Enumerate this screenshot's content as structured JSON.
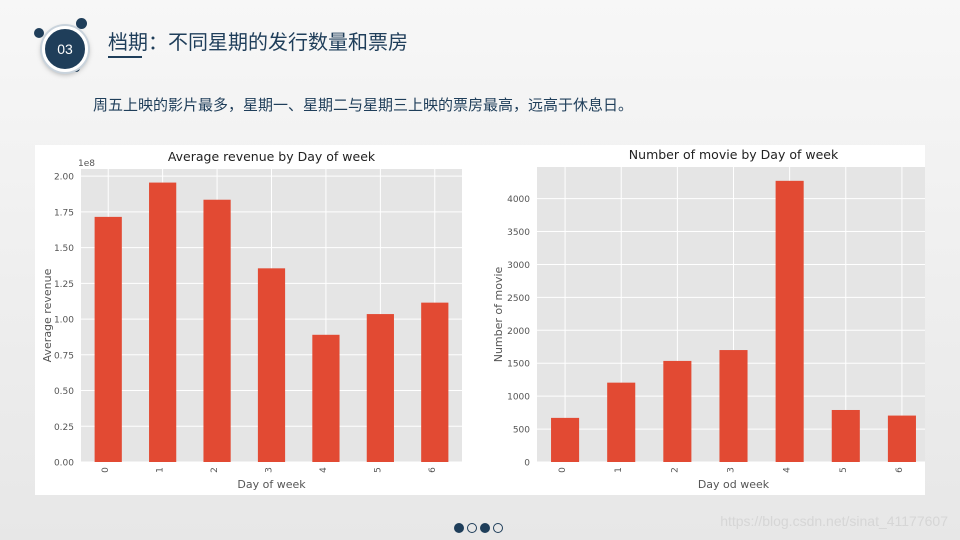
{
  "slide": {
    "badge_number": "03",
    "title": "档期：不同星期的发行数量和票房",
    "subtitle": "周五上映的影片最多，星期一、星期二与星期三上映的票房最高，远高于休息日。",
    "pager": [
      true,
      false,
      true,
      false
    ],
    "watermark": "https://blog.csdn.net/sinat_41177607"
  },
  "colors": {
    "bar": "#e24a33",
    "plot_bg": "#e5e5e5",
    "grid": "#ffffff",
    "text": "#555555",
    "title": "#1f3e5a"
  },
  "chart_data": [
    {
      "type": "bar",
      "title": "Average revenue by Day of week",
      "xlabel": "Day of week",
      "ylabel": "Average revenue",
      "scale_note": "1e8",
      "categories": [
        "0",
        "1",
        "2",
        "3",
        "4",
        "5",
        "6"
      ],
      "values": [
        171500000,
        195500000,
        183500000,
        135500000,
        89000000,
        103500000,
        111500000
      ],
      "ylim": [
        0,
        205000000
      ],
      "yticks": [
        0,
        25000000,
        50000000,
        75000000,
        100000000,
        125000000,
        150000000,
        175000000,
        200000000
      ],
      "ytick_labels": [
        "0.00",
        "0.25",
        "0.50",
        "0.75",
        "1.00",
        "1.25",
        "1.50",
        "1.75",
        "2.00"
      ],
      "grid": true,
      "xtick_rotation": -90
    },
    {
      "type": "bar",
      "title": "Number of movie by Day of week",
      "xlabel": "Day od week",
      "ylabel": "Number of movie",
      "categories": [
        "0",
        "1",
        "2",
        "3",
        "4",
        "5",
        "6"
      ],
      "values": [
        670,
        1205,
        1535,
        1700,
        4270,
        790,
        705
      ],
      "ylim": [
        0,
        4480
      ],
      "yticks": [
        0,
        500,
        1000,
        1500,
        2000,
        2500,
        3000,
        3500,
        4000
      ],
      "ytick_labels": [
        "0",
        "500",
        "1000",
        "1500",
        "2000",
        "2500",
        "3000",
        "3500",
        "4000"
      ],
      "grid": true,
      "xtick_rotation": -90
    }
  ]
}
